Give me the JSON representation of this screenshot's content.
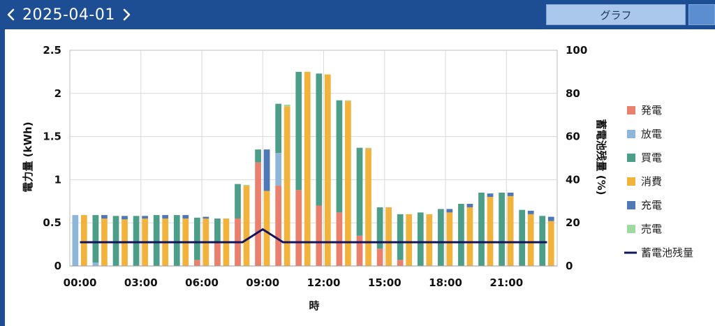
{
  "header": {
    "prev_icon": "chevron-left-icon",
    "next_icon": "chevron-right-icon",
    "date": "2025-04-01",
    "tab_label": "グラフ",
    "bar_color": "#1d4e93"
  },
  "chart_data": {
    "type": "bar",
    "stacked": true,
    "xlabel": "時",
    "ylabel": "電力量 (kWh)",
    "y2label": "蓄電池残量 (%)",
    "ylim": [
      0,
      2.5
    ],
    "yticks": [
      "0",
      "0.5",
      "1",
      "1.5",
      "2",
      "2.5"
    ],
    "y2lim": [
      0,
      100
    ],
    "y2ticks": [
      "0",
      "20",
      "40",
      "60",
      "80",
      "100"
    ],
    "xticks": [
      "00:00",
      "03:00",
      "06:00",
      "09:00",
      "12:00",
      "15:00",
      "18:00",
      "21:00"
    ],
    "grid": true,
    "legend_position": "right",
    "categories": [
      "00:00",
      "01:00",
      "02:00",
      "03:00",
      "04:00",
      "05:00",
      "06:00",
      "07:00",
      "08:00",
      "09:00",
      "10:00",
      "11:00",
      "12:00",
      "13:00",
      "14:00",
      "15:00",
      "16:00",
      "17:00",
      "18:00",
      "19:00",
      "20:00",
      "21:00",
      "22:00",
      "23:00"
    ],
    "supply_series": [
      {
        "name": "発電",
        "color": "#e8806d",
        "values": [
          0,
          0,
          0,
          0,
          0,
          0,
          0.07,
          0.28,
          0.55,
          1.2,
          0.93,
          0.88,
          0.7,
          0.62,
          0.35,
          0.2,
          0.07,
          0,
          0,
          0,
          0,
          0,
          0,
          0
        ]
      },
      {
        "name": "放電",
        "color": "#8fb6d9",
        "values": [
          0.59,
          0.04,
          0,
          0,
          0,
          0,
          0,
          0,
          0,
          0,
          0.38,
          0,
          0,
          0,
          0,
          0,
          0,
          0,
          0,
          0,
          0,
          0,
          0,
          0
        ]
      },
      {
        "name": "買電",
        "color": "#4d9e88",
        "values": [
          0,
          0.55,
          0.58,
          0.58,
          0.59,
          0.59,
          0.49,
          0.27,
          0.4,
          0.15,
          0.57,
          1.37,
          1.53,
          1.3,
          1.02,
          0.48,
          0.53,
          0.62,
          0.66,
          0.72,
          0.85,
          0.85,
          0.65,
          0.58
        ]
      }
    ],
    "demand_series": [
      {
        "name": "消費",
        "color": "#f2b33d",
        "values": [
          0.59,
          0.55,
          0.54,
          0.55,
          0.55,
          0.55,
          0.55,
          0.55,
          0.93,
          0.87,
          1.85,
          2.25,
          2.22,
          1.91,
          1.36,
          0.68,
          0.6,
          0.6,
          0.62,
          0.68,
          0.8,
          0.81,
          0.6,
          0.52
        ]
      },
      {
        "name": "充電",
        "color": "#4d77b5",
        "values": [
          0,
          0.04,
          0.04,
          0.03,
          0.04,
          0.04,
          0.02,
          0,
          0,
          0.48,
          0,
          0,
          0,
          0,
          0,
          0,
          0,
          0,
          0.04,
          0.04,
          0.04,
          0.04,
          0.04,
          0.05
        ]
      },
      {
        "name": "売電",
        "color": "#9ed9a0",
        "values": [
          0,
          0,
          0,
          0,
          0,
          0,
          0,
          0,
          0.01,
          0,
          0.02,
          0,
          0,
          0.01,
          0.01,
          0,
          0,
          0,
          0,
          0,
          0,
          0,
          0,
          0
        ]
      }
    ],
    "line_series": {
      "name": "蓄電池残量",
      "color": "#14145e",
      "x": [
        0,
        8,
        9,
        10,
        23
      ],
      "values": [
        11,
        11,
        17,
        11,
        11
      ]
    },
    "legend_order": [
      "発電",
      "放電",
      "買電",
      "消費",
      "充電",
      "売電",
      "蓄電池残量"
    ]
  }
}
